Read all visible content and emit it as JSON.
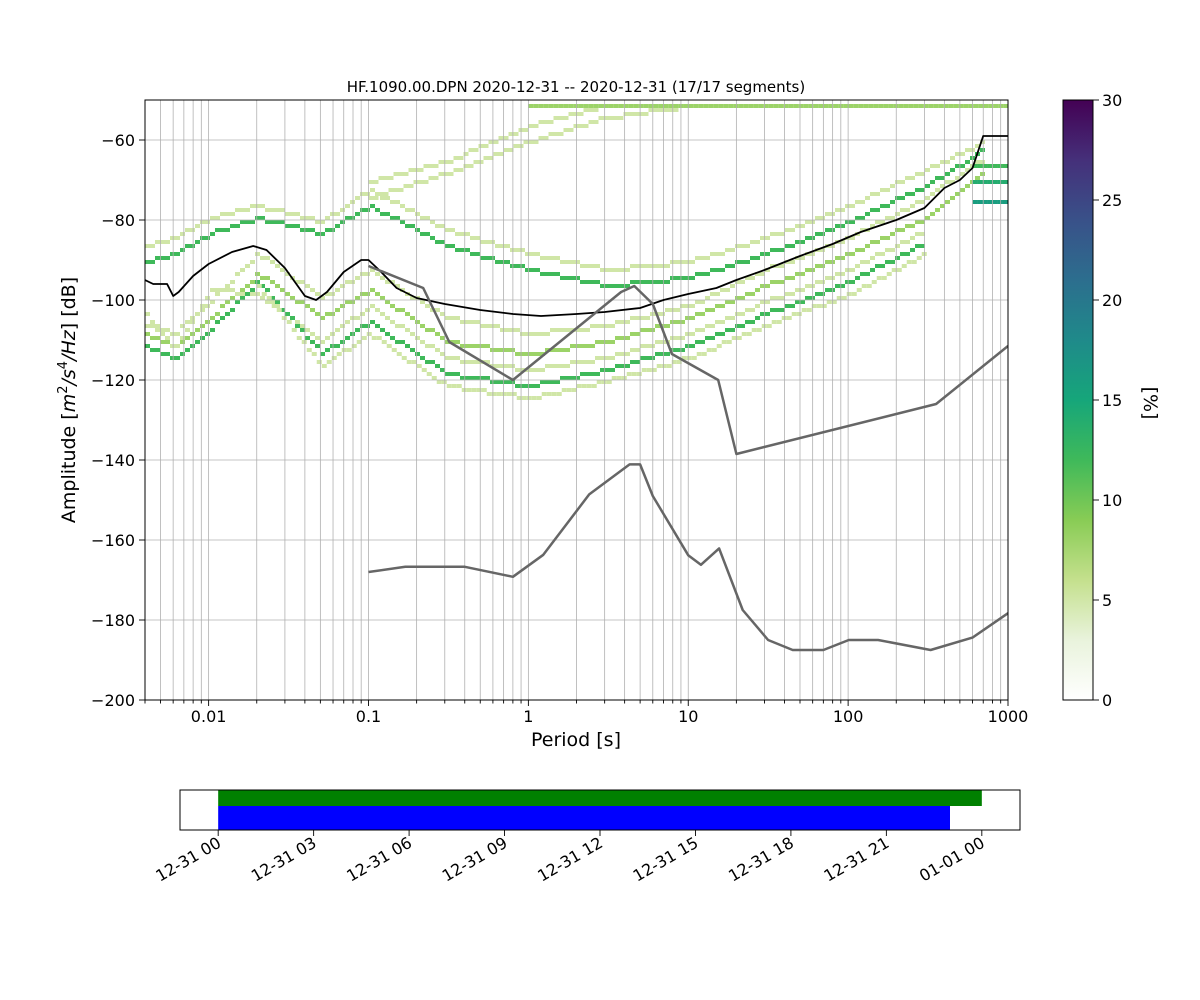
{
  "chart_data": [
    {
      "type": "heatmap",
      "title": "HF.1090.00.DPN   2020-12-31 -- 2020-12-31  (17/17 segments)",
      "xlabel": "Period [s]",
      "ylabel_parts": {
        "pre": "Amplitude [",
        "m": "m",
        "two": "2",
        "slash1": "/",
        "s": "s",
        "four": "4",
        "slash2": "/",
        "hz": "Hz",
        "post": "] [dB]"
      },
      "x_scale": "log",
      "xlim": [
        0.004,
        1000
      ],
      "ylim": [
        -200,
        -50
      ],
      "grid": true,
      "x_tick_labels": [
        {
          "value": 0.01,
          "label": "0.01"
        },
        {
          "value": 0.1,
          "label": "0.1"
        },
        {
          "value": 1,
          "label": "1"
        },
        {
          "value": 10,
          "label": "10"
        },
        {
          "value": 100,
          "label": "100"
        },
        {
          "value": 1000,
          "label": "1000"
        }
      ],
      "y_tick_labels": [
        {
          "value": -60,
          "label": "−60"
        },
        {
          "value": -80,
          "label": "−80"
        },
        {
          "value": -100,
          "label": "−100"
        },
        {
          "value": -120,
          "label": "−120"
        },
        {
          "value": -140,
          "label": "−140"
        },
        {
          "value": -160,
          "label": "−160"
        },
        {
          "value": -180,
          "label": "−180"
        },
        {
          "value": -200,
          "label": "−200"
        }
      ],
      "colorbar": {
        "label": "[%]",
        "range": [
          0,
          30
        ],
        "ticks": [
          {
            "value": 0,
            "label": "0"
          },
          {
            "value": 5,
            "label": "5"
          },
          {
            "value": 10,
            "label": "10"
          },
          {
            "value": 15,
            "label": "15"
          },
          {
            "value": 20,
            "label": "20"
          },
          {
            "value": 25,
            "label": "25"
          },
          {
            "value": 30,
            "label": "30"
          }
        ]
      },
      "density_bands": [
        {
          "percent": 5,
          "points": [
            [
              0.004,
              -106
            ],
            [
              0.006,
              -108
            ],
            [
              0.01,
              -100
            ],
            [
              0.02,
              -88
            ],
            [
              0.05,
              -99
            ],
            [
              0.1,
              -92
            ],
            [
              0.3,
              -104
            ],
            [
              1,
              -108
            ],
            [
              3,
              -106
            ],
            [
              10,
              -101
            ],
            [
              30,
              -92
            ],
            [
              100,
              -84
            ],
            [
              300,
              -74
            ],
            [
              700,
              -64
            ]
          ]
        },
        {
          "percent": 8,
          "points": [
            [
              0.004,
              -108
            ],
            [
              0.006,
              -111
            ],
            [
              0.01,
              -104
            ],
            [
              0.02,
              -93
            ],
            [
              0.05,
              -104
            ],
            [
              0.1,
              -97
            ],
            [
              0.3,
              -110
            ],
            [
              1,
              -113
            ],
            [
              3,
              -110
            ],
            [
              10,
              -104
            ],
            [
              30,
              -96
            ],
            [
              100,
              -88
            ],
            [
              300,
              -79
            ],
            [
              700,
              -67
            ]
          ]
        },
        {
          "percent": 5,
          "points": [
            [
              0.004,
              -103
            ],
            [
              0.006,
              -112
            ],
            [
              0.01,
              -97
            ],
            [
              0.02,
              -98
            ],
            [
              0.05,
              -110
            ],
            [
              0.1,
              -101
            ],
            [
              0.3,
              -114
            ],
            [
              1,
              -117
            ],
            [
              3,
              -114
            ],
            [
              10,
              -108
            ],
            [
              30,
              -100
            ],
            [
              100,
              -92
            ],
            [
              300,
              -82
            ]
          ]
        },
        {
          "percent": 12,
          "points": [
            [
              0.004,
              -111
            ],
            [
              0.006,
              -114
            ],
            [
              0.01,
              -107
            ],
            [
              0.02,
              -95
            ],
            [
              0.05,
              -113
            ],
            [
              0.1,
              -105
            ],
            [
              0.3,
              -118
            ],
            [
              1,
              -121
            ],
            [
              3,
              -117
            ],
            [
              10,
              -111
            ],
            [
              30,
              -103
            ],
            [
              100,
              -95
            ],
            [
              300,
              -85
            ]
          ]
        },
        {
          "percent": 5,
          "points": [
            [
              0.02,
              -96
            ],
            [
              0.05,
              -116
            ],
            [
              0.1,
              -108
            ],
            [
              0.3,
              -121
            ],
            [
              1,
              -124
            ],
            [
              3,
              -120
            ],
            [
              10,
              -114
            ],
            [
              30,
              -106
            ],
            [
              100,
              -98
            ],
            [
              300,
              -88
            ]
          ]
        },
        {
          "percent": 5,
          "points": [
            [
              0.004,
              -86
            ],
            [
              0.006,
              -84
            ],
            [
              0.01,
              -79
            ],
            [
              0.02,
              -76
            ],
            [
              0.05,
              -80
            ],
            [
              0.1,
              -72
            ],
            [
              0.3,
              -82
            ],
            [
              1,
              -88
            ],
            [
              3,
              -92
            ],
            [
              10,
              -90
            ],
            [
              30,
              -84
            ],
            [
              100,
              -76
            ],
            [
              300,
              -67
            ],
            [
              700,
              -60
            ]
          ]
        },
        {
          "percent": 12,
          "points": [
            [
              0.004,
              -90
            ],
            [
              0.006,
              -88
            ],
            [
              0.01,
              -83
            ],
            [
              0.02,
              -79
            ],
            [
              0.05,
              -83
            ],
            [
              0.1,
              -76
            ],
            [
              0.3,
              -86
            ],
            [
              1,
              -92
            ],
            [
              3,
              -96
            ],
            [
              10,
              -94
            ],
            [
              30,
              -88
            ],
            [
              100,
              -80
            ],
            [
              300,
              -71
            ],
            [
              700,
              -62
            ]
          ]
        },
        {
          "percent": 5,
          "points": [
            [
              0.1,
              -70
            ],
            [
              0.3,
              -65
            ],
            [
              1,
              -56
            ],
            [
              3,
              -51
            ]
          ]
        },
        {
          "percent": 5,
          "points": [
            [
              0.1,
              -74
            ],
            [
              0.3,
              -68
            ],
            [
              1,
              -60
            ],
            [
              3,
              -54
            ],
            [
              10,
              -51
            ]
          ]
        },
        {
          "percent": 8,
          "points": [
            [
              1,
              -51
            ],
            [
              1000,
              -51
            ]
          ]
        },
        {
          "percent": 14,
          "points": [
            [
              600,
              -70
            ],
            [
              1000,
              -70
            ]
          ]
        },
        {
          "percent": 12,
          "points": [
            [
              600,
              -66
            ],
            [
              1000,
              -66
            ]
          ]
        },
        {
          "percent": 16,
          "points": [
            [
              600,
              -75
            ],
            [
              1000,
              -75
            ]
          ]
        }
      ],
      "series": [
        {
          "role": "mode",
          "color": "#000000",
          "points": [
            [
              0.004,
              -95
            ],
            [
              0.0045,
              -96
            ],
            [
              0.0055,
              -96
            ],
            [
              0.006,
              -99
            ],
            [
              0.0065,
              -98
            ],
            [
              0.008,
              -94
            ],
            [
              0.01,
              -91
            ],
            [
              0.014,
              -88
            ],
            [
              0.019,
              -86.5
            ],
            [
              0.023,
              -87.5
            ],
            [
              0.03,
              -92
            ],
            [
              0.04,
              -99
            ],
            [
              0.047,
              -100
            ],
            [
              0.055,
              -98
            ],
            [
              0.07,
              -93
            ],
            [
              0.09,
              -90
            ],
            [
              0.1,
              -90
            ],
            [
              0.12,
              -93
            ],
            [
              0.15,
              -97
            ],
            [
              0.2,
              -99.5
            ],
            [
              0.3,
              -101
            ],
            [
              0.5,
              -102.5
            ],
            [
              0.8,
              -103.5
            ],
            [
              1.2,
              -104
            ],
            [
              2,
              -103.5
            ],
            [
              3,
              -103
            ],
            [
              5,
              -102
            ],
            [
              7,
              -100
            ],
            [
              10,
              -98.5
            ],
            [
              15,
              -97
            ],
            [
              20,
              -95
            ],
            [
              30,
              -92.5
            ],
            [
              50,
              -89
            ],
            [
              80,
              -86
            ],
            [
              120,
              -83
            ],
            [
              200,
              -80
            ],
            [
              300,
              -77
            ],
            [
              400,
              -72
            ],
            [
              500,
              -70
            ],
            [
              600,
              -67
            ],
            [
              700,
              -59
            ],
            [
              1000,
              -59
            ]
          ]
        },
        {
          "role": "nhnm-earth",
          "color": "#666666",
          "points": [
            [
              0.1,
              -91.5
            ],
            [
              0.22,
              -97
            ],
            [
              0.32,
              -110.5
            ],
            [
              0.8,
              -120
            ],
            [
              3.8,
              -98
            ],
            [
              4.6,
              -96.5
            ],
            [
              6,
              -101
            ],
            [
              7.9,
              -113.5
            ],
            [
              15.4,
              -120
            ],
            [
              20,
              -138.5
            ],
            [
              354.8,
              -126
            ],
            [
              1000,
              -111.5
            ]
          ]
        },
        {
          "role": "nlnm",
          "color": "#666666",
          "points": [
            [
              0.1,
              -168
            ],
            [
              0.17,
              -166.7
            ],
            [
              0.4,
              -166.7
            ],
            [
              0.8,
              -169.2
            ],
            [
              1.24,
              -163.7
            ],
            [
              2.4,
              -148.6
            ],
            [
              4.3,
              -141.1
            ],
            [
              5,
              -141.1
            ],
            [
              6,
              -149
            ],
            [
              10,
              -163.8
            ],
            [
              12,
              -166.2
            ],
            [
              15.6,
              -162.1
            ],
            [
              21.9,
              -177.5
            ],
            [
              31.6,
              -185
            ],
            [
              45,
              -187.5
            ],
            [
              70,
              -187.5
            ],
            [
              101,
              -185
            ],
            [
              154,
              -185
            ],
            [
              328,
              -187.5
            ],
            [
              600,
              -184.4
            ],
            [
              1000,
              -178.3
            ]
          ]
        }
      ]
    },
    {
      "type": "bar",
      "subtype": "timeline",
      "x_tick_labels": [
        "12-31 00",
        "12-31 03",
        "12-31 06",
        "12-31 09",
        "12-31 12",
        "12-31 15",
        "12-31 18",
        "12-31 21",
        "01-01 00"
      ],
      "xlim_hours": [
        -1.2,
        25.2
      ],
      "bars": [
        {
          "color": "#008000",
          "start_hour": 0,
          "end_hour": 24
        },
        {
          "color": "#0000ff",
          "start_hour": 0,
          "end_hour": 23
        }
      ]
    }
  ],
  "colors": {
    "grid": "#b0b0b0",
    "mode": "#000000",
    "noise_models": "#666666",
    "cmap": [
      "#ffffff",
      "#e9f3dc",
      "#c4e08d",
      "#88cc55",
      "#3fb95a",
      "#16a67a",
      "#1f8a8a",
      "#2c6e8e",
      "#395189",
      "#45307a",
      "#440154"
    ]
  }
}
